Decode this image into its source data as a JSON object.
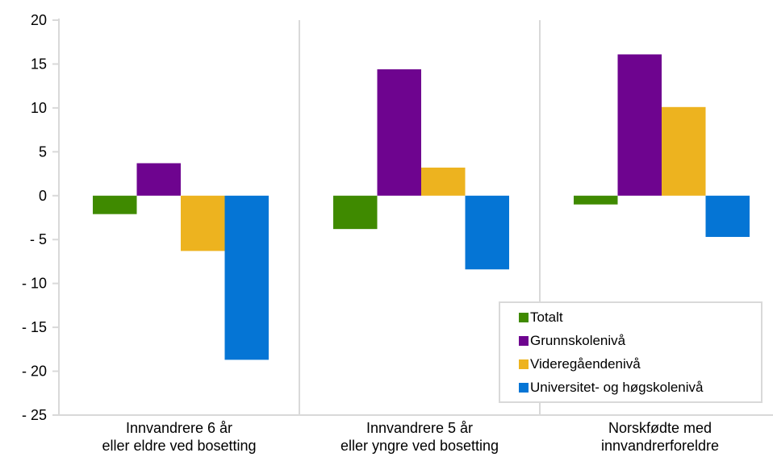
{
  "chart_data": {
    "type": "bar",
    "categories": [
      [
        "Innvandrere 6 år",
        "eller eldre ved bosetting"
      ],
      [
        "Innvandrere 5 år",
        "eller yngre ved bosetting"
      ],
      [
        "Norskfødte med",
        "innvandrerforeldre"
      ]
    ],
    "series": [
      {
        "name": "Totalt",
        "color": "#3F8A00",
        "values": [
          -2.1,
          -3.8,
          -1.0
        ]
      },
      {
        "name": "Grunnskolenivå",
        "color": "#6E048F",
        "values": [
          3.7,
          14.4,
          16.1
        ]
      },
      {
        "name": "Videregåendenivå",
        "color": "#EDB31F",
        "values": [
          -6.3,
          3.2,
          10.1
        ]
      },
      {
        "name": "Universitet- og høgskolenivå",
        "color": "#0575D5",
        "values": [
          -18.7,
          -8.4,
          -4.7
        ]
      }
    ],
    "ylim": [
      -25,
      20
    ],
    "yticks": [
      20,
      15,
      10,
      5,
      0,
      -5,
      -10,
      -15,
      -20,
      -25
    ],
    "ytick_labels": [
      "20",
      "15",
      "10",
      "5",
      "0",
      "- 5",
      "- 10",
      "- 15",
      "- 20",
      "- 25"
    ],
    "title": "",
    "xlabel": "",
    "ylabel": "",
    "grid": "vertical category separators",
    "legend_position": "bottom-right"
  }
}
